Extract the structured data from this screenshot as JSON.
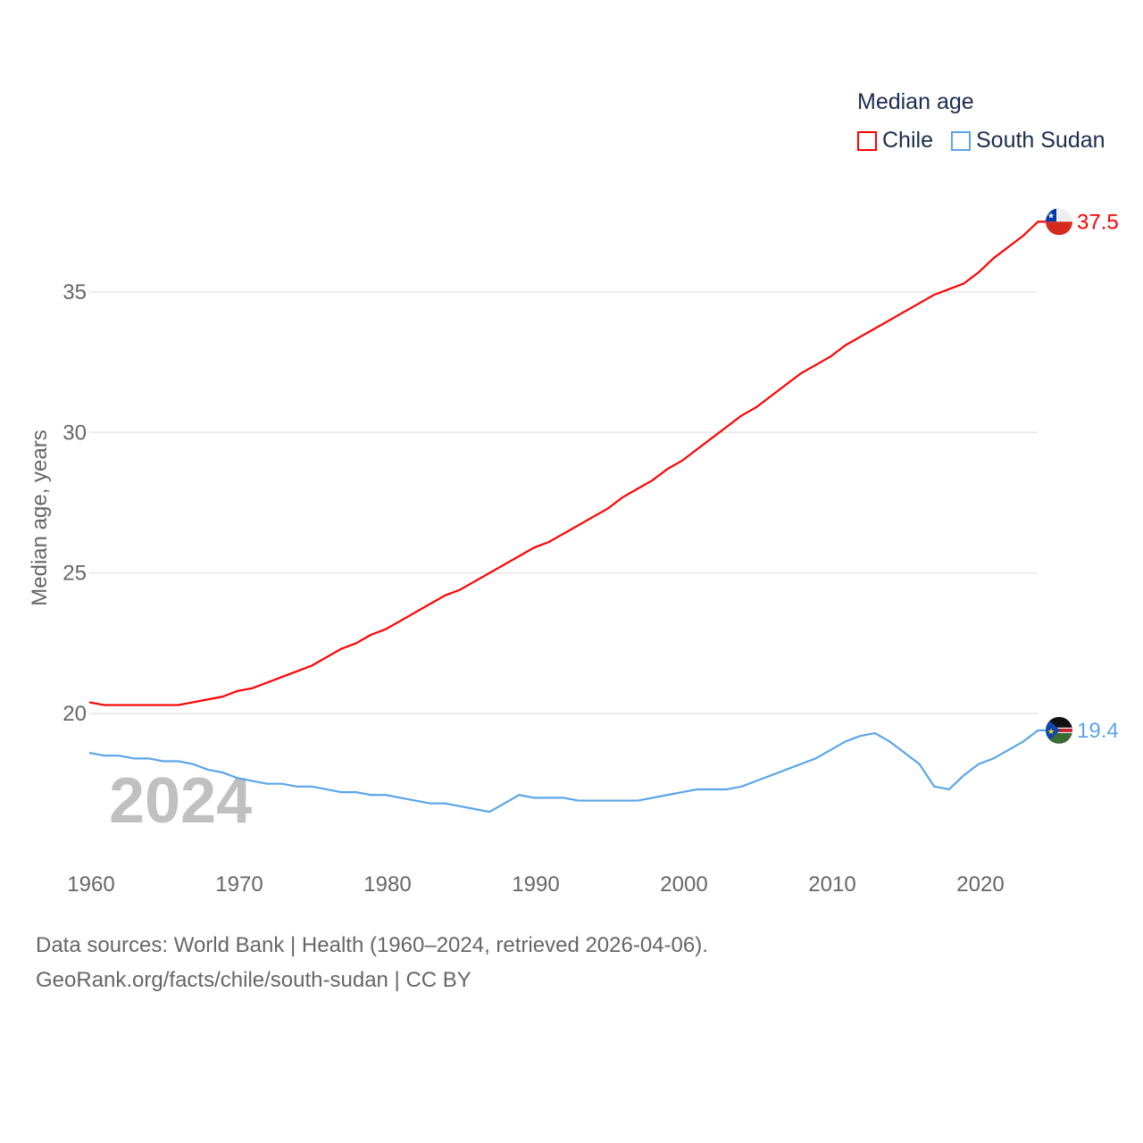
{
  "legend": {
    "title": "Median age",
    "items": [
      {
        "label": "Chile",
        "color": "#ff0000"
      },
      {
        "label": "South Sudan",
        "color": "#5aa5ea"
      }
    ]
  },
  "year_watermark": "2024",
  "footer": {
    "line1": "Data sources: World Bank | Health (1960–2024, retrieved 2026-04-06).",
    "line2": "GeoRank.org/facts/chile/south-sudan | CC BY"
  },
  "chart_data": {
    "type": "line",
    "title": "Median age",
    "xlabel": "",
    "ylabel": "Median age, years",
    "x_ticks": [
      "1960",
      "1970",
      "1980",
      "1990",
      "2000",
      "2010",
      "2020"
    ],
    "y_ticks": [
      "20",
      "25",
      "30",
      "35"
    ],
    "ylim": [
      15.5,
      38
    ],
    "xlim": [
      1960,
      2024
    ],
    "grid": true,
    "legend_position": "top-right",
    "x_start": 1960,
    "series": [
      {
        "name": "Chile",
        "color": "#ff0000",
        "end_label": "37.5",
        "flag": "chile-flag-icon",
        "values": [
          20.4,
          20.3,
          20.3,
          20.3,
          20.3,
          20.3,
          20.3,
          20.4,
          20.5,
          20.6,
          20.8,
          20.9,
          21.1,
          21.3,
          21.5,
          21.7,
          22.0,
          22.3,
          22.5,
          22.8,
          23.0,
          23.3,
          23.6,
          23.9,
          24.2,
          24.4,
          24.7,
          25.0,
          25.3,
          25.6,
          25.9,
          26.1,
          26.4,
          26.7,
          27.0,
          27.3,
          27.7,
          28.0,
          28.3,
          28.7,
          29.0,
          29.4,
          29.8,
          30.2,
          30.6,
          30.9,
          31.3,
          31.7,
          32.1,
          32.4,
          32.7,
          33.1,
          33.4,
          33.7,
          34.0,
          34.3,
          34.6,
          34.9,
          35.1,
          35.3,
          35.7,
          36.2,
          36.6,
          37.0,
          37.5
        ]
      },
      {
        "name": "South Sudan",
        "color": "#5aa5ea",
        "end_label": "19.4",
        "flag": "south-sudan-flag-icon",
        "values": [
          18.6,
          18.5,
          18.5,
          18.4,
          18.4,
          18.3,
          18.3,
          18.2,
          18.0,
          17.9,
          17.7,
          17.6,
          17.5,
          17.5,
          17.4,
          17.4,
          17.3,
          17.2,
          17.2,
          17.1,
          17.1,
          17.0,
          16.9,
          16.8,
          16.8,
          16.7,
          16.6,
          16.5,
          16.8,
          17.1,
          17.0,
          17.0,
          17.0,
          16.9,
          16.9,
          16.9,
          16.9,
          16.9,
          17.0,
          17.1,
          17.2,
          17.3,
          17.3,
          17.3,
          17.4,
          17.6,
          17.8,
          18.0,
          18.2,
          18.4,
          18.7,
          19.0,
          19.2,
          19.3,
          19.0,
          18.6,
          18.2,
          17.4,
          17.3,
          17.8,
          18.2,
          18.4,
          18.7,
          19.0,
          19.4
        ]
      }
    ]
  }
}
